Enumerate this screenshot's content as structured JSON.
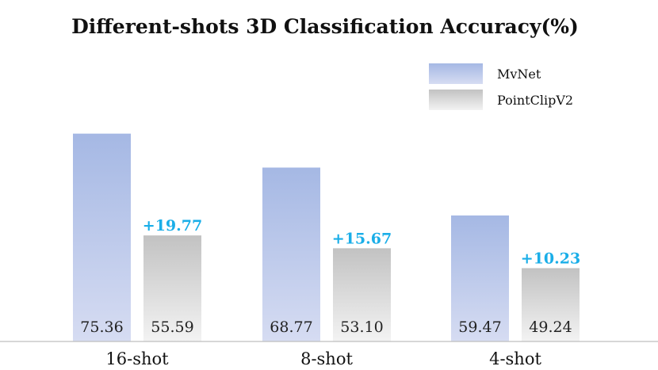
{
  "chart_data": {
    "type": "bar",
    "title": "Different-shots 3D Classification Accuracy(%)",
    "categories": [
      "16-shot",
      "8-shot",
      "4-shot"
    ],
    "series": [
      {
        "name": "MvNet",
        "values": [
          75.36,
          68.77,
          59.47
        ],
        "labels": [
          "75.36",
          "68.77",
          "59.47"
        ]
      },
      {
        "name": "PointClipV2",
        "values": [
          55.59,
          53.1,
          49.24
        ],
        "labels": [
          "55.59",
          "53.10",
          "49.24"
        ]
      }
    ],
    "annotations": [
      "+19.77",
      "+15.67",
      "+10.23"
    ],
    "ylim": [
      35,
      83
    ],
    "grid": false,
    "legend_position": "top-right"
  },
  "colors": {
    "mvnet_top": "#a5b8e4",
    "mvnet_bottom": "#d6dcf2",
    "pointclip_top": "#c2c2c2",
    "pointclip_bottom": "#f3f3f3",
    "delta": "#1aaee8",
    "axis": "#bfbfbf"
  }
}
